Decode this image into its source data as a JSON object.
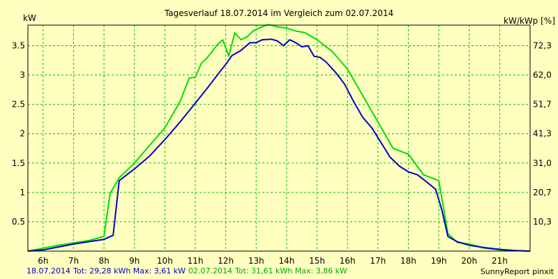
{
  "chart_data": {
    "type": "line",
    "title": "Tagesverlauf 18.07.2014 im Vergleich zum 02.07.2014",
    "ylabel_left": "kW",
    "ylabel_right": "kW/kWp [%]",
    "xlim": [
      5.5,
      22.0
    ],
    "ylim": [
      0,
      3.85
    ],
    "x_ticks": [
      6,
      7,
      8,
      9,
      10,
      11,
      12,
      13,
      14,
      15,
      16,
      17,
      18,
      19,
      20,
      21
    ],
    "x_tick_labels": [
      "6h",
      "7h",
      "8h",
      "9h",
      "10h",
      "11h",
      "12h",
      "13h",
      "14h",
      "15h",
      "16h",
      "17h",
      "18h",
      "19h",
      "20h",
      "21h"
    ],
    "y_ticks": [
      0.5,
      1,
      1.5,
      2,
      2.5,
      3,
      3.5
    ],
    "y_tick_labels": [
      "0.5",
      "1",
      "1.5",
      "2",
      "2.5",
      "3",
      "3.5"
    ],
    "y2_tick_labels": [
      "10,3",
      "20,7",
      "31,0",
      "41,3",
      "51,7",
      "62,0",
      "72,3"
    ],
    "grid": true,
    "series": [
      {
        "name": "18.07.2014",
        "color": "#0000cc",
        "x": [
          5.5,
          6.0,
          6.5,
          7.0,
          7.5,
          8.0,
          8.3,
          8.5,
          9.0,
          9.5,
          10.0,
          10.5,
          11.0,
          11.4,
          11.8,
          12.0,
          12.2,
          12.5,
          12.8,
          13.0,
          13.2,
          13.5,
          13.7,
          13.9,
          14.1,
          14.3,
          14.5,
          14.7,
          14.9,
          15.1,
          15.3,
          15.6,
          15.9,
          16.2,
          16.5,
          16.8,
          17.1,
          17.4,
          17.7,
          18.0,
          18.3,
          18.6,
          18.9,
          19.1,
          19.3,
          19.6,
          20.0,
          20.5,
          21.0,
          21.5,
          22.0
        ],
        "y": [
          0.0,
          0.02,
          0.07,
          0.12,
          0.16,
          0.2,
          0.27,
          1.2,
          1.4,
          1.62,
          1.9,
          2.2,
          2.52,
          2.78,
          3.05,
          3.18,
          3.33,
          3.42,
          3.55,
          3.55,
          3.6,
          3.61,
          3.58,
          3.5,
          3.6,
          3.55,
          3.48,
          3.5,
          3.32,
          3.3,
          3.22,
          3.05,
          2.85,
          2.55,
          2.28,
          2.1,
          1.85,
          1.6,
          1.45,
          1.35,
          1.3,
          1.18,
          1.05,
          0.7,
          0.25,
          0.16,
          0.1,
          0.06,
          0.03,
          0.01,
          0.0
        ]
      },
      {
        "name": "02.07.2014",
        "color": "#00dd00",
        "x": [
          5.5,
          6.0,
          6.5,
          7.0,
          7.5,
          8.0,
          8.2,
          8.5,
          9.0,
          9.5,
          10.0,
          10.5,
          10.8,
          11.0,
          11.2,
          11.4,
          11.7,
          11.9,
          12.1,
          12.3,
          12.5,
          12.7,
          12.9,
          13.1,
          13.4,
          13.7,
          14.0,
          14.3,
          14.6,
          15.0,
          15.5,
          16.0,
          16.5,
          17.0,
          17.5,
          18.0,
          18.5,
          19.0,
          19.3,
          19.6,
          20.0,
          20.5,
          21.0,
          21.5,
          22.0
        ],
        "y": [
          0.0,
          0.05,
          0.1,
          0.14,
          0.18,
          0.25,
          0.98,
          1.25,
          1.5,
          1.8,
          2.1,
          2.55,
          2.95,
          2.96,
          3.2,
          3.3,
          3.5,
          3.6,
          3.32,
          3.72,
          3.6,
          3.65,
          3.75,
          3.8,
          3.86,
          3.82,
          3.8,
          3.75,
          3.72,
          3.6,
          3.4,
          3.1,
          2.65,
          2.2,
          1.75,
          1.65,
          1.3,
          1.2,
          0.3,
          0.15,
          0.12,
          0.05,
          0.02,
          0.01,
          0.0
        ]
      }
    ]
  },
  "footer": {
    "series1_name": "18.07.2014",
    "series1_stats": "Tot: 29,28 kWh Max: 3,61 kW",
    "series2_name": "02.07.2014",
    "series2_stats": "Tot: 31,61 kWh Max: 3,86 kW",
    "credit": "SunnyReport pinxit"
  }
}
